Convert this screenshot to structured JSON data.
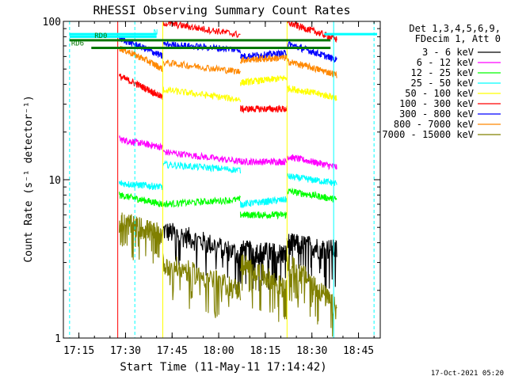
{
  "chart_data": {
    "type": "line",
    "title": "RHESSI Observing Summary Count Rates",
    "xlabel": "Start Time (11-May-11 17:14:42)",
    "ylabel": "Count Rate (s⁻¹ detector⁻¹)",
    "x_tick_labels": [
      "17:15",
      "17:30",
      "17:45",
      "18:00",
      "18:15",
      "18:30",
      "18:45"
    ],
    "x_ticks_minutes": [
      15,
      30,
      45,
      60,
      75,
      90,
      105
    ],
    "xlim_minutes": [
      10,
      112
    ],
    "y_scale": "log",
    "ylim": [
      1,
      100
    ],
    "y_tick_labels": [
      "1",
      "10",
      "100"
    ],
    "legend_header": [
      "Det 1,3,4,5,6,9,",
      "FDecim 1, Att 0"
    ],
    "footer_date": "17-Oct-2021 05:20",
    "flags": [
      {
        "label": "N",
        "color": "#00ffff",
        "x": [
          12,
          40
        ],
        "y": 80
      },
      {
        "label": "RD0",
        "color": "#007700",
        "x": [
          12,
          96
        ],
        "y": 76
      },
      {
        "label": "RD6",
        "color": "#007700",
        "x": [
          19,
          96
        ],
        "y": 68
      }
    ],
    "cyan_bar_segments": [
      {
        "x": [
          12,
          40
        ],
        "y": 83
      },
      {
        "x": [
          94,
          111
        ],
        "y": 83
      }
    ],
    "vertical_lines_solid": [
      {
        "x": 27.5,
        "color": "#ff0000"
      },
      {
        "x": 42,
        "color": "#ffff00"
      },
      {
        "x": 82,
        "color": "#ffff00"
      },
      {
        "x": 97,
        "color": "#00ffff"
      }
    ],
    "vertical_lines_dashed": [
      {
        "x": 33,
        "color": "#00ffff"
      },
      {
        "x": 110,
        "color": "#00ffff"
      },
      {
        "x": 12,
        "color": "#00ffff"
      }
    ],
    "orbits": [
      [
        28,
        42
      ],
      [
        42,
        67
      ],
      [
        67,
        82
      ],
      [
        82,
        98
      ]
    ],
    "series": [
      {
        "name": "3 - 6 keV",
        "color": "#000000",
        "values_by_orbit": [
          [
            null,
            null
          ],
          [
            4.8,
            3.4
          ],
          [
            3.6,
            3.4
          ],
          [
            4.0,
            3.6
          ]
        ]
      },
      {
        "name": "6 - 12 keV",
        "color": "#ff00ff",
        "values_by_orbit": [
          [
            18,
            16
          ],
          [
            15,
            13
          ],
          [
            13,
            13
          ],
          [
            14,
            12
          ]
        ]
      },
      {
        "name": "12 - 25 keV",
        "color": "#00ff00",
        "values_by_orbit": [
          [
            8,
            7
          ],
          [
            7,
            7.5
          ],
          [
            6,
            6
          ],
          [
            8.5,
            7.5
          ]
        ]
      },
      {
        "name": "25 - 50 keV",
        "color": "#00ffff",
        "values_by_orbit": [
          [
            9.5,
            9
          ],
          [
            12.5,
            11.5
          ],
          [
            7,
            7.5
          ],
          [
            10.5,
            9.5
          ]
        ]
      },
      {
        "name": "50 - 100 keV",
        "color": "#ffff00",
        "values_by_orbit": [
          [
            null,
            null
          ],
          [
            37,
            32
          ],
          [
            41,
            44
          ],
          [
            38,
            33
          ]
        ]
      },
      {
        "name": "100 - 300 keV",
        "color": "#ff0000",
        "values_by_orbit": [
          [
            45,
            33
          ],
          [
            98,
            82
          ],
          [
            28,
            28
          ],
          [
            98,
            77
          ]
        ]
      },
      {
        "name": "300 - 800 keV",
        "color": "#0000ff",
        "values_by_orbit": [
          [
            78,
            60
          ],
          [
            72,
            66
          ],
          [
            60,
            63
          ],
          [
            72,
            57
          ]
        ]
      },
      {
        "name": "800 - 7000 keV",
        "color": "#ff8800",
        "values_by_orbit": [
          [
            68,
            50
          ],
          [
            55,
            48
          ],
          [
            57,
            59
          ],
          [
            56,
            46
          ]
        ]
      },
      {
        "name": "7000 - 15000 keV",
        "color": "#808000",
        "values_by_orbit": [
          [
            5.5,
            4.5
          ],
          [
            3,
            2
          ],
          [
            3,
            2
          ],
          [
            3,
            1.5
          ]
        ]
      }
    ]
  }
}
